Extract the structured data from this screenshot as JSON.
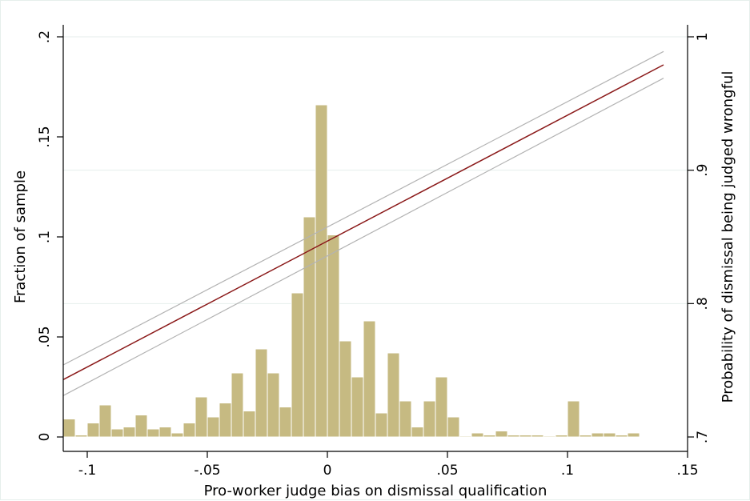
{
  "chart_data": {
    "type": "bar",
    "title": "",
    "xlabel": "Pro-worker judge bias on dismissal qualification",
    "ylabel": "Fraction of sample",
    "y2label": "Probability of dismissal being judged wrongful",
    "xlim": [
      -0.11,
      0.15
    ],
    "ylim": [
      0,
      0.2
    ],
    "y2lim": [
      0.7,
      1.0
    ],
    "grid": "horizontal",
    "xticks": [
      -0.1,
      -0.05,
      0,
      0.05,
      0.1,
      0.15
    ],
    "xtick_labels": [
      "-.1",
      "-.05",
      "0",
      ".05",
      ".1",
      ".15"
    ],
    "yticks": [
      0,
      0.05,
      0.1,
      0.15,
      0.2
    ],
    "ytick_labels": [
      "0",
      ".05",
      ".1",
      ".15",
      ".2"
    ],
    "y2ticks": [
      0.7,
      0.8,
      0.9,
      1.0
    ],
    "y2tick_labels": [
      ".7",
      ".8",
      ".9",
      "1"
    ],
    "histogram": {
      "color": "#c6ba82",
      "bin_width": 0.005,
      "bin_starts": [
        -0.11,
        -0.105,
        -0.1,
        -0.095,
        -0.09,
        -0.085,
        -0.08,
        -0.075,
        -0.07,
        -0.065,
        -0.06,
        -0.055,
        -0.05,
        -0.045,
        -0.04,
        -0.035,
        -0.03,
        -0.025,
        -0.02,
        -0.015,
        -0.01,
        -0.005,
        0.0,
        0.005,
        0.01,
        0.015,
        0.02,
        0.025,
        0.03,
        0.035,
        0.04,
        0.045,
        0.05,
        0.055,
        0.06,
        0.065,
        0.07,
        0.075,
        0.08,
        0.085,
        0.09,
        0.095,
        0.1,
        0.105,
        0.11,
        0.115,
        0.12,
        0.125,
        0.13,
        0.135
      ],
      "values": [
        0.009,
        0.001,
        0.007,
        0.016,
        0.004,
        0.005,
        0.011,
        0.004,
        0.005,
        0.002,
        0.007,
        0.02,
        0.01,
        0.017,
        0.032,
        0.013,
        0.044,
        0.032,
        0.015,
        0.072,
        0.11,
        0.166,
        0.101,
        0.048,
        0.03,
        0.058,
        0.012,
        0.042,
        0.018,
        0.005,
        0.018,
        0.03,
        0.01,
        0.0005,
        0.002,
        0.001,
        0.003,
        0.001,
        0.001,
        0.001,
        0.0005,
        0.001,
        0.018,
        0.001,
        0.002,
        0.002,
        0.001,
        0.002,
        0.0,
        0.0
      ]
    },
    "fit": {
      "axis": "right",
      "color": "#8b1a1a",
      "x": [
        -0.11,
        0.14
      ],
      "y": [
        0.743,
        0.979
      ],
      "ci_color": "#b3b3b3",
      "ci_lower": [
        0.731,
        0.969
      ],
      "ci_upper": [
        0.754,
        0.989
      ]
    }
  }
}
